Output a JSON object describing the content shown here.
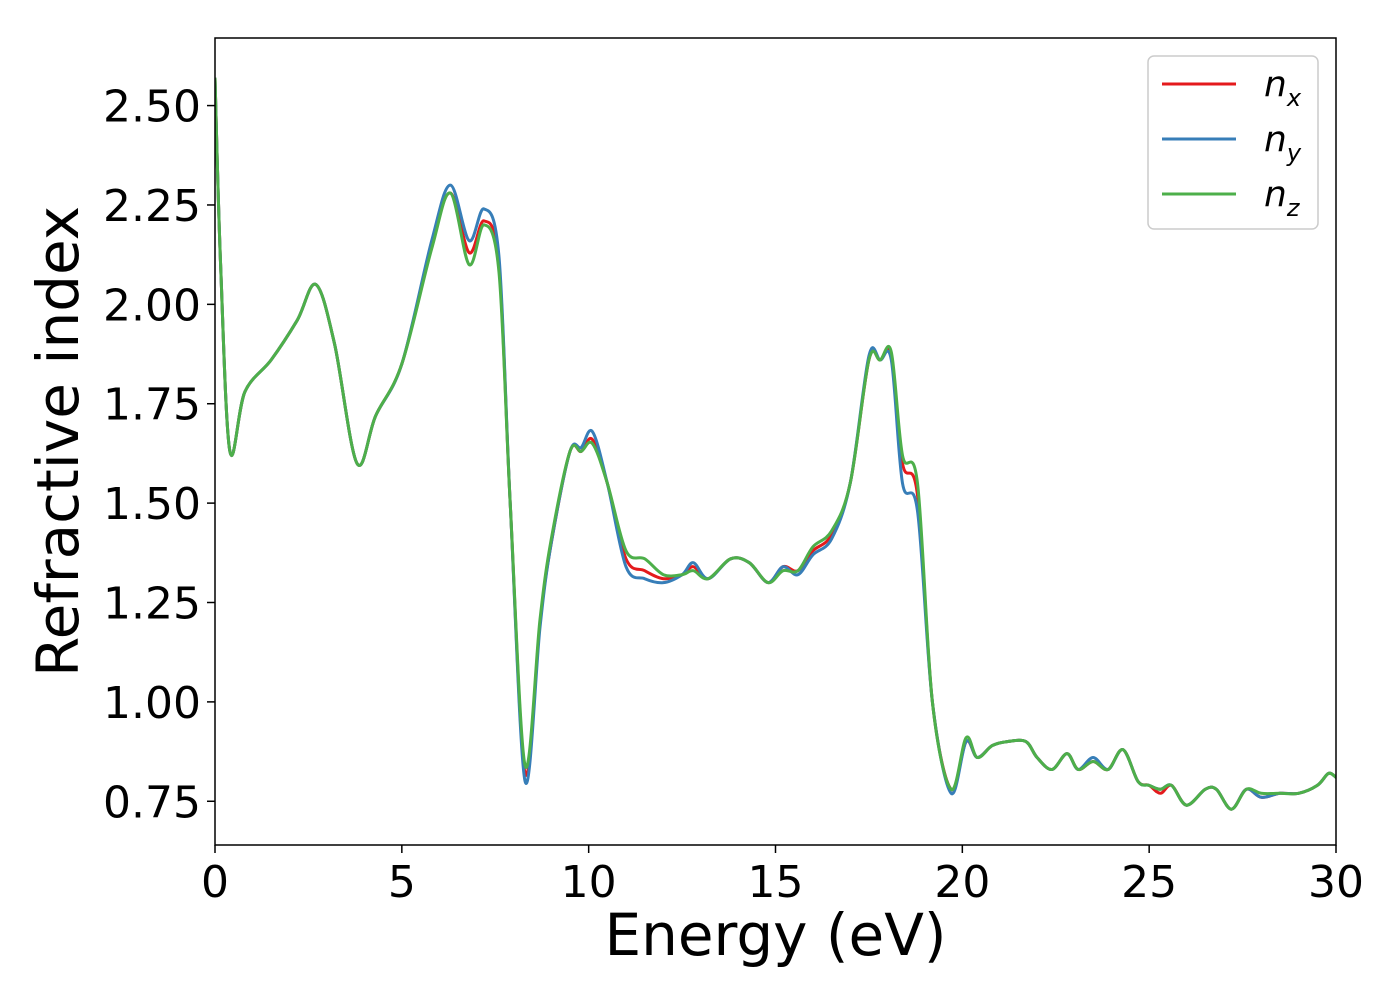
{
  "chart_data": {
    "type": "line",
    "xlabel": "Energy (eV)",
    "ylabel": "Refractive index",
    "xlim": [
      0,
      30
    ],
    "ylim": [
      0.64,
      2.67
    ],
    "x_ticks": [
      "0",
      "5",
      "10",
      "15",
      "20",
      "25",
      "30"
    ],
    "x_tick_values": [
      0,
      5,
      10,
      15,
      20,
      25,
      30
    ],
    "y_ticks": [
      "0.75",
      "1.00",
      "1.25",
      "1.50",
      "1.75",
      "2.00",
      "2.25",
      "2.50"
    ],
    "y_tick_values": [
      0.75,
      1.0,
      1.25,
      1.5,
      1.75,
      2.0,
      2.25,
      2.5
    ],
    "grid": false,
    "legend_position": "top-right",
    "series": [
      {
        "name": "n_x",
        "label_base": "n",
        "label_sub": "x",
        "color": "#e41a1c",
        "x": [
          0,
          0.15,
          0.4,
          0.8,
          1.5,
          2.2,
          2.7,
          3.2,
          3.8,
          4.3,
          5.0,
          5.8,
          6.3,
          6.8,
          7.2,
          7.6,
          7.9,
          8.3,
          8.7,
          9.0,
          9.5,
          9.8,
          10.1,
          10.5,
          11.0,
          11.5,
          12.0,
          12.5,
          12.8,
          13.2,
          13.8,
          14.3,
          14.8,
          15.2,
          15.6,
          16.0,
          16.5,
          17.0,
          17.5,
          17.8,
          18.1,
          18.4,
          18.8,
          19.2,
          19.7,
          20.1,
          20.4,
          20.8,
          21.2,
          21.7,
          22.0,
          22.4,
          22.8,
          23.1,
          23.5,
          23.9,
          24.3,
          24.7,
          25.0,
          25.3,
          25.6,
          26.0,
          26.5,
          26.8,
          27.2,
          27.6,
          28.0,
          28.5,
          29.0,
          29.5,
          29.8,
          30
        ],
        "y": [
          2.57,
          2.1,
          1.63,
          1.78,
          1.86,
          1.96,
          2.05,
          1.9,
          1.6,
          1.72,
          1.85,
          2.15,
          2.28,
          2.13,
          2.21,
          2.1,
          1.5,
          0.82,
          1.2,
          1.4,
          1.63,
          1.63,
          1.66,
          1.55,
          1.36,
          1.33,
          1.31,
          1.32,
          1.34,
          1.31,
          1.36,
          1.35,
          1.3,
          1.34,
          1.33,
          1.38,
          1.42,
          1.55,
          1.86,
          1.86,
          1.87,
          1.6,
          1.52,
          1.0,
          0.78,
          0.9,
          0.86,
          0.89,
          0.9,
          0.9,
          0.86,
          0.83,
          0.87,
          0.83,
          0.85,
          0.83,
          0.88,
          0.8,
          0.79,
          0.77,
          0.79,
          0.74,
          0.78,
          0.78,
          0.73,
          0.78,
          0.76,
          0.77,
          0.77,
          0.79,
          0.82,
          0.81
        ]
      },
      {
        "name": "n_y",
        "label_base": "n",
        "label_sub": "y",
        "color": "#377eb8",
        "x": [
          0,
          0.15,
          0.4,
          0.8,
          1.5,
          2.2,
          2.7,
          3.2,
          3.8,
          4.3,
          5.0,
          5.8,
          6.3,
          6.8,
          7.2,
          7.6,
          7.9,
          8.3,
          8.7,
          9.0,
          9.5,
          9.8,
          10.1,
          10.5,
          11.0,
          11.5,
          12.0,
          12.5,
          12.8,
          13.2,
          13.8,
          14.3,
          14.8,
          15.2,
          15.6,
          16.0,
          16.5,
          17.0,
          17.5,
          17.8,
          18.1,
          18.4,
          18.8,
          19.2,
          19.7,
          20.1,
          20.4,
          20.8,
          21.2,
          21.7,
          22.0,
          22.4,
          22.8,
          23.1,
          23.5,
          23.9,
          24.3,
          24.7,
          25.0,
          25.3,
          25.6,
          26.0,
          26.5,
          26.8,
          27.2,
          27.6,
          28.0,
          28.5,
          29.0,
          29.5,
          29.8,
          30
        ],
        "y": [
          2.57,
          2.1,
          1.63,
          1.78,
          1.86,
          1.96,
          2.05,
          1.9,
          1.6,
          1.72,
          1.85,
          2.16,
          2.3,
          2.16,
          2.24,
          2.12,
          1.5,
          0.8,
          1.19,
          1.4,
          1.63,
          1.64,
          1.68,
          1.55,
          1.34,
          1.31,
          1.3,
          1.32,
          1.35,
          1.31,
          1.36,
          1.35,
          1.3,
          1.34,
          1.32,
          1.37,
          1.41,
          1.55,
          1.87,
          1.86,
          1.86,
          1.55,
          1.48,
          1.0,
          0.77,
          0.9,
          0.86,
          0.89,
          0.9,
          0.9,
          0.86,
          0.83,
          0.87,
          0.83,
          0.86,
          0.83,
          0.88,
          0.8,
          0.79,
          0.78,
          0.79,
          0.74,
          0.78,
          0.78,
          0.73,
          0.78,
          0.76,
          0.77,
          0.77,
          0.79,
          0.82,
          0.81
        ]
      },
      {
        "name": "n_z",
        "label_base": "n",
        "label_sub": "z",
        "color": "#4daf4a",
        "x": [
          0,
          0.15,
          0.4,
          0.8,
          1.5,
          2.2,
          2.7,
          3.2,
          3.8,
          4.3,
          5.0,
          5.8,
          6.3,
          6.8,
          7.2,
          7.6,
          7.9,
          8.3,
          8.7,
          9.0,
          9.5,
          9.8,
          10.1,
          10.5,
          11.0,
          11.5,
          12.0,
          12.5,
          12.8,
          13.2,
          13.8,
          14.3,
          14.8,
          15.2,
          15.6,
          16.0,
          16.5,
          17.0,
          17.5,
          17.8,
          18.1,
          18.4,
          18.8,
          19.2,
          19.7,
          20.1,
          20.4,
          20.8,
          21.2,
          21.7,
          22.0,
          22.4,
          22.8,
          23.1,
          23.5,
          23.9,
          24.3,
          24.7,
          25.0,
          25.3,
          25.6,
          26.0,
          26.5,
          26.8,
          27.2,
          27.6,
          28.0,
          28.5,
          29.0,
          29.5,
          29.8,
          30
        ],
        "y": [
          2.57,
          2.1,
          1.63,
          1.78,
          1.86,
          1.96,
          2.05,
          1.9,
          1.6,
          1.72,
          1.85,
          2.14,
          2.28,
          2.1,
          2.2,
          2.08,
          1.5,
          0.84,
          1.21,
          1.41,
          1.63,
          1.63,
          1.65,
          1.55,
          1.38,
          1.36,
          1.32,
          1.32,
          1.33,
          1.31,
          1.36,
          1.35,
          1.3,
          1.33,
          1.33,
          1.39,
          1.43,
          1.55,
          1.86,
          1.86,
          1.88,
          1.62,
          1.55,
          1.0,
          0.78,
          0.91,
          0.86,
          0.89,
          0.9,
          0.9,
          0.86,
          0.83,
          0.87,
          0.83,
          0.85,
          0.83,
          0.88,
          0.8,
          0.79,
          0.78,
          0.79,
          0.74,
          0.78,
          0.78,
          0.73,
          0.78,
          0.77,
          0.77,
          0.77,
          0.79,
          0.82,
          0.81
        ]
      }
    ]
  }
}
